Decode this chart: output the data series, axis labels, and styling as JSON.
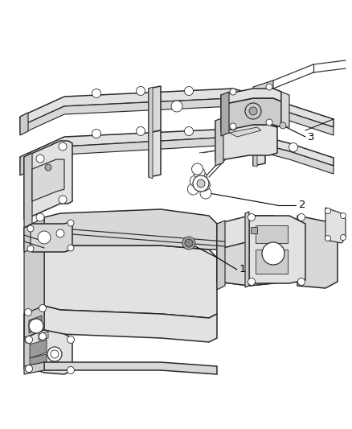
{
  "background_color": "#ffffff",
  "line_color": "#2a2a2a",
  "label_color": "#000000",
  "fig_width": 4.38,
  "fig_height": 5.33,
  "dpi": 100,
  "lw_main": 1.1,
  "lw_thin": 0.6,
  "lw_med": 0.85,
  "gray_dark": "#aaaaaa",
  "gray_mid": "#cccccc",
  "gray_light": "#e2e2e2",
  "gray_fill": "#d8d8d8",
  "white": "#ffffff"
}
